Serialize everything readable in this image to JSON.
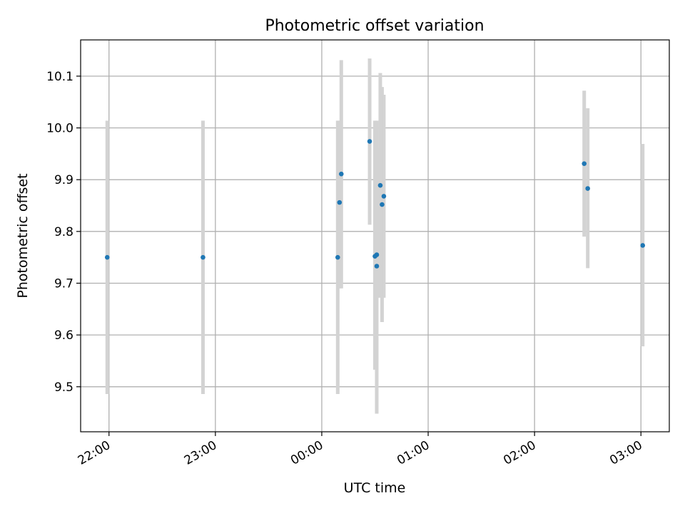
{
  "chart_data": {
    "type": "scatter",
    "title": "Photometric offset variation",
    "xlabel": "UTC time",
    "ylabel": "Photometric offset",
    "grid": true,
    "x_axis_kind": "time",
    "xlim": [
      "21:44",
      "03:16"
    ],
    "ylim": [
      9.413,
      10.17
    ],
    "x_ticks": [
      "22:00",
      "23:00",
      "00:00",
      "01:00",
      "02:00",
      "03:00"
    ],
    "y_ticks": [
      "9.5",
      "9.6",
      "9.7",
      "9.8",
      "9.9",
      "10.0",
      "10.1"
    ],
    "colors": {
      "point": "#1f77b4",
      "errorbar": "#d3d3d3",
      "grid": "#b0b0b0"
    },
    "points": [
      {
        "x": "21:59",
        "y": 9.75,
        "yerr_low": 9.486,
        "yerr_high": 10.014
      },
      {
        "x": "22:53",
        "y": 9.75,
        "yerr_low": 9.486,
        "yerr_high": 10.014
      },
      {
        "x": "00:09",
        "y": 9.75,
        "yerr_low": 9.486,
        "yerr_high": 10.014
      },
      {
        "x": "00:10",
        "y": 9.856,
        "yerr_low": 9.69,
        "yerr_high": 10.014
      },
      {
        "x": "00:11",
        "y": 9.911,
        "yerr_low": 9.69,
        "yerr_high": 10.131
      },
      {
        "x": "00:27",
        "y": 9.974,
        "yerr_low": 9.813,
        "yerr_high": 10.134
      },
      {
        "x": "00:30",
        "y": 9.752,
        "yerr_low": 9.533,
        "yerr_high": 10.014
      },
      {
        "x": "00:31",
        "y": 9.755,
        "yerr_low": 9.672,
        "yerr_high": 9.96
      },
      {
        "x": "00:31",
        "y": 9.733,
        "yerr_low": 9.448,
        "yerr_high": 10.014
      },
      {
        "x": "00:33",
        "y": 9.889,
        "yerr_low": 9.672,
        "yerr_high": 10.106
      },
      {
        "x": "00:34",
        "y": 9.852,
        "yerr_low": 9.625,
        "yerr_high": 10.079
      },
      {
        "x": "00:35",
        "y": 9.868,
        "yerr_low": 9.672,
        "yerr_high": 10.064
      },
      {
        "x": "02:28",
        "y": 9.931,
        "yerr_low": 9.79,
        "yerr_high": 10.072
      },
      {
        "x": "02:30",
        "y": 9.883,
        "yerr_low": 9.729,
        "yerr_high": 10.038
      },
      {
        "x": "03:01",
        "y": 9.773,
        "yerr_low": 9.578,
        "yerr_high": 9.969
      }
    ]
  }
}
